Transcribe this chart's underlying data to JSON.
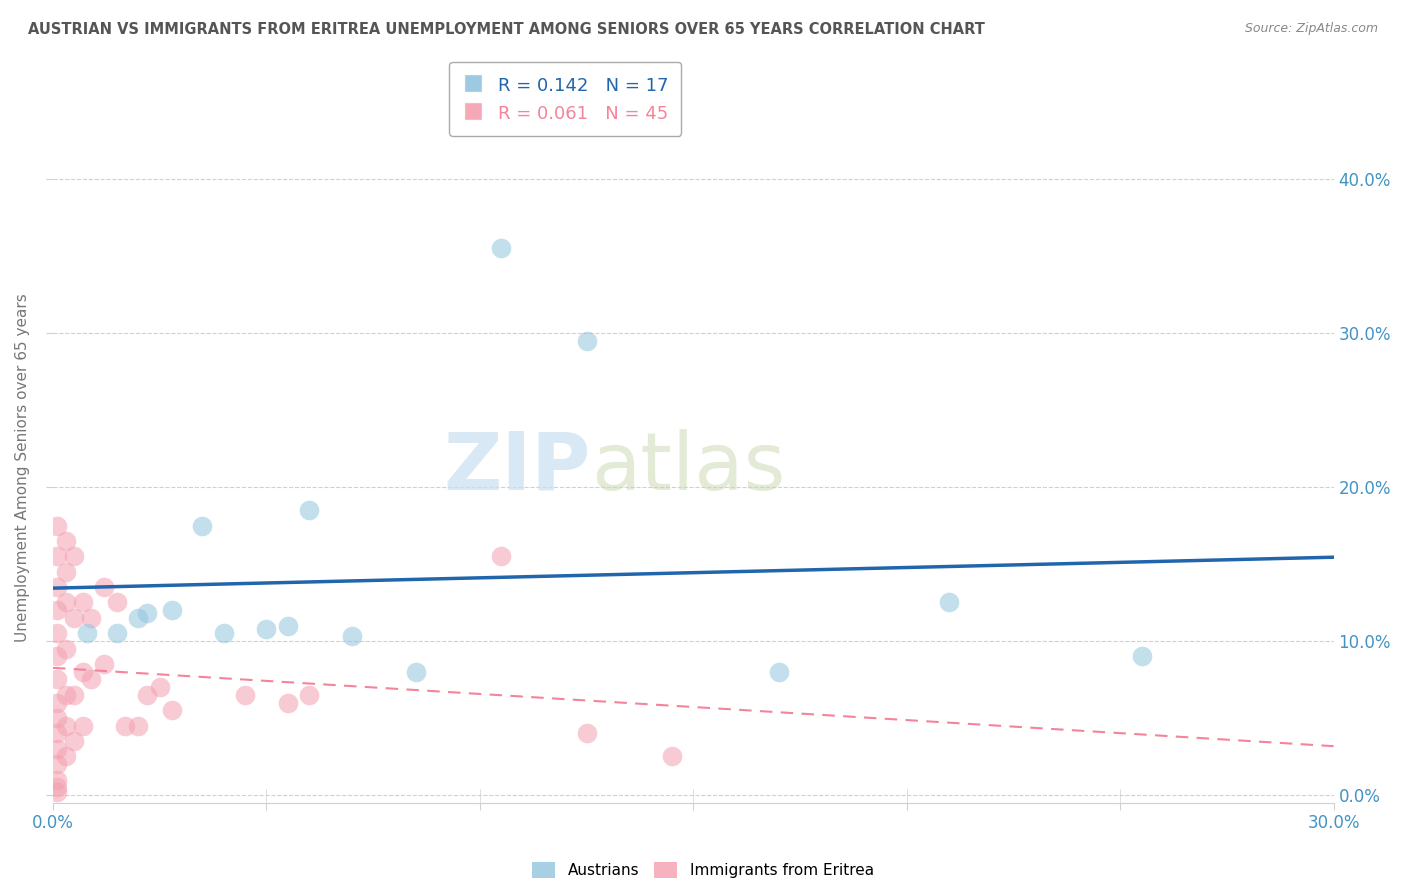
{
  "title": "AUSTRIAN VS IMMIGRANTS FROM ERITREA UNEMPLOYMENT AMONG SENIORS OVER 65 YEARS CORRELATION CHART",
  "source": "Source: ZipAtlas.com",
  "xlim": [
    0,
    0.3
  ],
  "ylim": [
    -0.005,
    0.43
  ],
  "ylabel": "Unemployment Among Seniors over 65 years",
  "watermark_zip": "ZIP",
  "watermark_atlas": "atlas",
  "austrian_points": [
    [
      0.008,
      0.105
    ],
    [
      0.015,
      0.105
    ],
    [
      0.02,
      0.115
    ],
    [
      0.022,
      0.118
    ],
    [
      0.028,
      0.12
    ],
    [
      0.035,
      0.175
    ],
    [
      0.04,
      0.105
    ],
    [
      0.05,
      0.108
    ],
    [
      0.055,
      0.11
    ],
    [
      0.06,
      0.185
    ],
    [
      0.07,
      0.103
    ],
    [
      0.085,
      0.08
    ],
    [
      0.105,
      0.355
    ],
    [
      0.125,
      0.295
    ],
    [
      0.17,
      0.08
    ],
    [
      0.21,
      0.125
    ],
    [
      0.255,
      0.09
    ]
  ],
  "eritrea_points": [
    [
      0.001,
      0.175
    ],
    [
      0.001,
      0.155
    ],
    [
      0.001,
      0.135
    ],
    [
      0.001,
      0.12
    ],
    [
      0.001,
      0.105
    ],
    [
      0.001,
      0.09
    ],
    [
      0.001,
      0.075
    ],
    [
      0.001,
      0.06
    ],
    [
      0.001,
      0.05
    ],
    [
      0.001,
      0.04
    ],
    [
      0.001,
      0.03
    ],
    [
      0.001,
      0.02
    ],
    [
      0.001,
      0.01
    ],
    [
      0.001,
      0.005
    ],
    [
      0.001,
      0.002
    ],
    [
      0.003,
      0.165
    ],
    [
      0.003,
      0.145
    ],
    [
      0.003,
      0.125
    ],
    [
      0.003,
      0.095
    ],
    [
      0.003,
      0.065
    ],
    [
      0.003,
      0.045
    ],
    [
      0.003,
      0.025
    ],
    [
      0.005,
      0.155
    ],
    [
      0.005,
      0.115
    ],
    [
      0.005,
      0.065
    ],
    [
      0.005,
      0.035
    ],
    [
      0.007,
      0.125
    ],
    [
      0.007,
      0.08
    ],
    [
      0.007,
      0.045
    ],
    [
      0.009,
      0.115
    ],
    [
      0.009,
      0.075
    ],
    [
      0.012,
      0.135
    ],
    [
      0.012,
      0.085
    ],
    [
      0.015,
      0.125
    ],
    [
      0.017,
      0.045
    ],
    [
      0.02,
      0.045
    ],
    [
      0.022,
      0.065
    ],
    [
      0.025,
      0.07
    ],
    [
      0.028,
      0.055
    ],
    [
      0.045,
      0.065
    ],
    [
      0.055,
      0.06
    ],
    [
      0.06,
      0.065
    ],
    [
      0.105,
      0.155
    ],
    [
      0.125,
      0.04
    ],
    [
      0.145,
      0.025
    ]
  ],
  "austrian_color": "#92c5de",
  "eritrea_color": "#f4a0b0",
  "scatter_size": 200,
  "scatter_alpha": 0.55,
  "regression_blue_color": "#2166ac",
  "regression_pink_color": "#f4849a",
  "grid_color": "#d0d0d0",
  "background_color": "#ffffff",
  "title_color": "#555555",
  "tick_color": "#4393c3",
  "legend_r_n": [
    {
      "R": "0.142",
      "N": "17"
    },
    {
      "R": "0.061",
      "N": "45"
    }
  ]
}
